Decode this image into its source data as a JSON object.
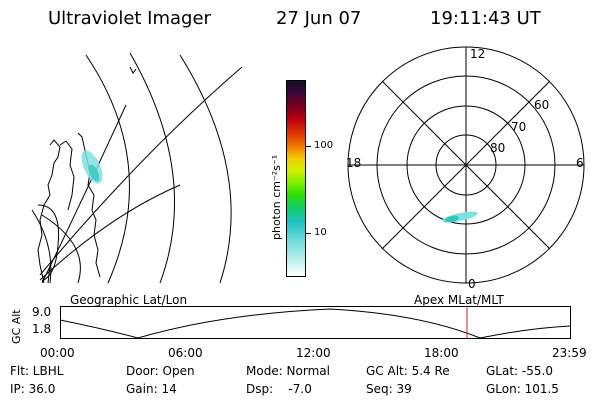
{
  "header": {
    "title": "Ultraviolet Imager",
    "date": "27 Jun 07",
    "time": "19:11:43 UT"
  },
  "colorbar": {
    "unit_label": "photon cm⁻²s⁻¹",
    "tick_100": "100",
    "tick_10": "10"
  },
  "polar": {
    "mlt_top": "12",
    "mlt_left": "18",
    "mlt_right": "6",
    "mlt_bottom": "0",
    "lat_60": "60",
    "lat_70": "70",
    "lat_80": "80"
  },
  "timeline": {
    "label_geo": "Geographic Lat/Lon",
    "label_apex": "Apex MLat/MLT",
    "axis_label": "GC Alt",
    "y_top": "9.0",
    "y_bottom": "1.8",
    "x_ticks": [
      "00:00",
      "06:00",
      "12:00",
      "18:00",
      "23:59"
    ],
    "marker_color": "#cc2222"
  },
  "status": {
    "flt": "Flt: LBHL",
    "ip": "IP: 36.0",
    "door": "Door: Open",
    "gain": "Gain: 14",
    "mode": "Mode: Normal",
    "dsp": "Dsp:    -7.0",
    "gc_alt": "GC Alt: 5.4 Re",
    "seq": "Seq: 39",
    "glat": "GLat: -55.0",
    "glon": "GLon: 101.5"
  }
}
